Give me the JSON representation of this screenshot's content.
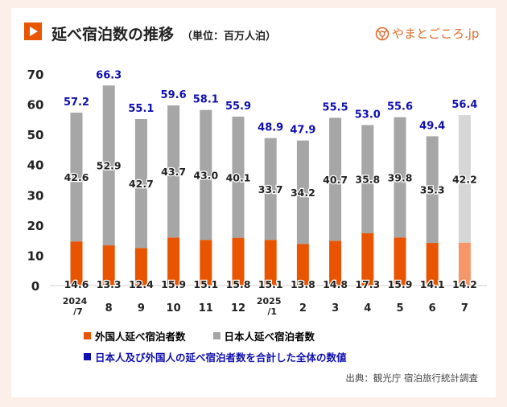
{
  "title": "延べ宿泊数の推移",
  "unit": "（単位：百万人泊）",
  "logo_text": "やまとごころ.jp",
  "source": "出典：観光庁 宿泊旅行統計調査",
  "colors": {
    "foreign": "#e85400",
    "japanese": "#a6a6a6",
    "total": "#1010b0",
    "foreign_light": "#f5976a",
    "japanese_light": "#d6d6d6"
  },
  "chart_data": {
    "type": "bar",
    "stacked": true,
    "categories": [
      "2024/7",
      "8",
      "9",
      "10",
      "11",
      "12",
      "2025/1",
      "2",
      "3",
      "4",
      "5",
      "6",
      "7"
    ],
    "category_labels": [
      [
        "2024",
        "/7"
      ],
      [
        "8"
      ],
      [
        "9"
      ],
      [
        "10"
      ],
      [
        "11"
      ],
      [
        "12"
      ],
      [
        "2025",
        "/1"
      ],
      [
        "2"
      ],
      [
        "3"
      ],
      [
        "4"
      ],
      [
        "5"
      ],
      [
        "6"
      ],
      [
        "7"
      ]
    ],
    "series": [
      {
        "name": "外国人延べ宿泊者数",
        "values": [
          14.6,
          13.3,
          12.4,
          15.9,
          15.1,
          15.8,
          15.1,
          13.8,
          14.8,
          17.3,
          15.9,
          14.1,
          14.2
        ]
      },
      {
        "name": "日本人延べ宿泊者数",
        "values": [
          42.6,
          52.9,
          42.7,
          43.7,
          43.0,
          40.1,
          33.7,
          34.2,
          40.7,
          35.8,
          39.8,
          35.3,
          42.2
        ]
      }
    ],
    "totals": {
      "name": "日本人及び外国人の延べ宿泊者数を合計した全体の数値",
      "values": [
        57.2,
        66.3,
        55.1,
        59.6,
        58.1,
        55.9,
        48.9,
        47.9,
        55.5,
        53.0,
        55.6,
        49.4,
        56.4
      ]
    },
    "ylim": [
      0,
      70
    ],
    "yticks": [
      0,
      10,
      20,
      30,
      40,
      50,
      60,
      70
    ],
    "grid": false,
    "legend": "bottom",
    "highlighted_last": true
  }
}
